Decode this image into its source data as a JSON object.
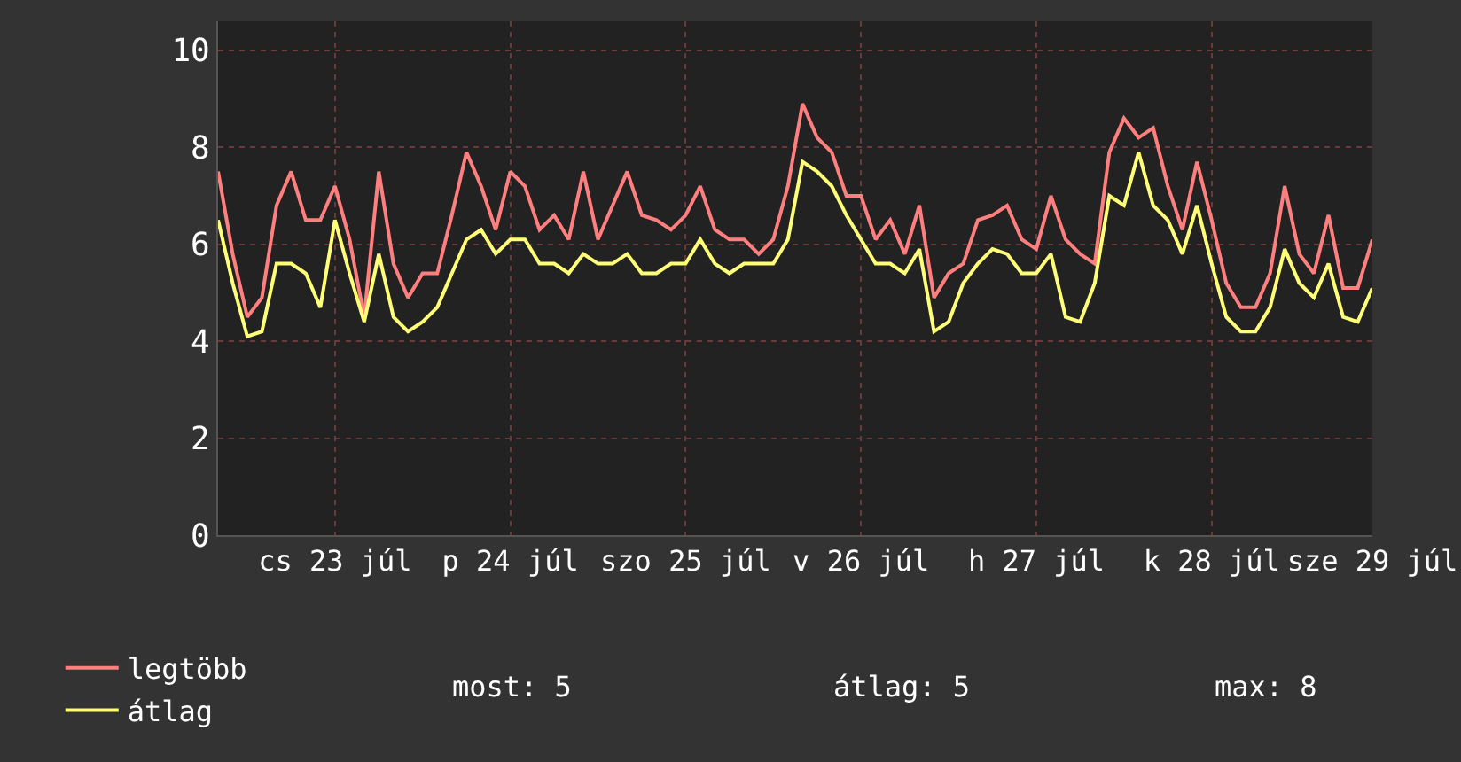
{
  "chart_data": {
    "type": "line",
    "categories": [
      null,
      null,
      null,
      null,
      null,
      null,
      null,
      null,
      "cs 23 júl",
      null,
      null,
      null,
      null,
      null,
      null,
      null,
      null,
      null,
      null,
      null,
      "p 24 júl",
      null,
      null,
      null,
      null,
      null,
      null,
      null,
      null,
      null,
      null,
      null,
      "szo 25 júl",
      null,
      null,
      null,
      null,
      null,
      null,
      null,
      null,
      null,
      null,
      null,
      "v 26 júl",
      null,
      null,
      null,
      null,
      null,
      null,
      null,
      null,
      null,
      null,
      null,
      "h 27 júl",
      null,
      null,
      null,
      null,
      null,
      null,
      null,
      null,
      null,
      null,
      null,
      "k 28 júl",
      null,
      null,
      null,
      null,
      null,
      null,
      null,
      null,
      null,
      null,
      "sze 29 júl"
    ],
    "series": [
      {
        "name": "legtöbb",
        "color": "#ff7f7f",
        "values": [
          7.5,
          5.8,
          4.5,
          4.9,
          6.8,
          7.5,
          6.5,
          6.5,
          7.2,
          6.1,
          4.5,
          7.5,
          5.6,
          4.9,
          5.4,
          5.4,
          6.6,
          7.9,
          7.2,
          6.3,
          7.5,
          7.2,
          6.3,
          6.6,
          6.1,
          7.5,
          6.1,
          6.8,
          7.5,
          6.6,
          6.5,
          6.3,
          6.6,
          7.2,
          6.3,
          6.1,
          6.1,
          5.8,
          6.1,
          7.2,
          8.9,
          8.2,
          7.9,
          7.0,
          7.0,
          6.1,
          6.5,
          5.8,
          6.8,
          4.9,
          5.4,
          5.6,
          6.5,
          6.6,
          6.8,
          6.1,
          5.9,
          7.0,
          6.1,
          5.8,
          5.6,
          7.9,
          8.6,
          8.2,
          8.4,
          7.2,
          6.3,
          7.7,
          6.5,
          5.2,
          4.7,
          4.7,
          5.4,
          7.2,
          5.8,
          5.4,
          6.6,
          5.1,
          5.1,
          6.1
        ]
      },
      {
        "name": "átlag",
        "color": "#ffff77",
        "values": [
          6.5,
          5.2,
          4.1,
          4.2,
          5.6,
          5.6,
          5.4,
          4.7,
          6.5,
          5.4,
          4.4,
          5.8,
          4.5,
          4.2,
          4.4,
          4.7,
          5.4,
          6.1,
          6.3,
          5.8,
          6.1,
          6.1,
          5.6,
          5.6,
          5.4,
          5.8,
          5.6,
          5.6,
          5.8,
          5.4,
          5.4,
          5.6,
          5.6,
          6.1,
          5.6,
          5.4,
          5.6,
          5.6,
          5.6,
          6.1,
          7.7,
          7.5,
          7.2,
          6.6,
          6.1,
          5.6,
          5.6,
          5.4,
          5.9,
          4.2,
          4.4,
          5.2,
          5.6,
          5.9,
          5.8,
          5.4,
          5.4,
          5.8,
          4.5,
          4.4,
          5.2,
          7.0,
          6.8,
          7.9,
          6.8,
          6.5,
          5.8,
          6.8,
          5.6,
          4.5,
          4.2,
          4.2,
          4.7,
          5.9,
          5.2,
          4.9,
          5.6,
          4.5,
          4.4,
          5.1
        ]
      }
    ],
    "ylim": [
      0,
      10.6
    ],
    "yticks": [
      0,
      2,
      4,
      6,
      8,
      10
    ],
    "grid": true,
    "legend": "bottom left",
    "marker": "none",
    "line_style": "solid",
    "annotations": [
      "most: 5",
      "átlag: 5",
      "max: 8"
    ]
  }
}
